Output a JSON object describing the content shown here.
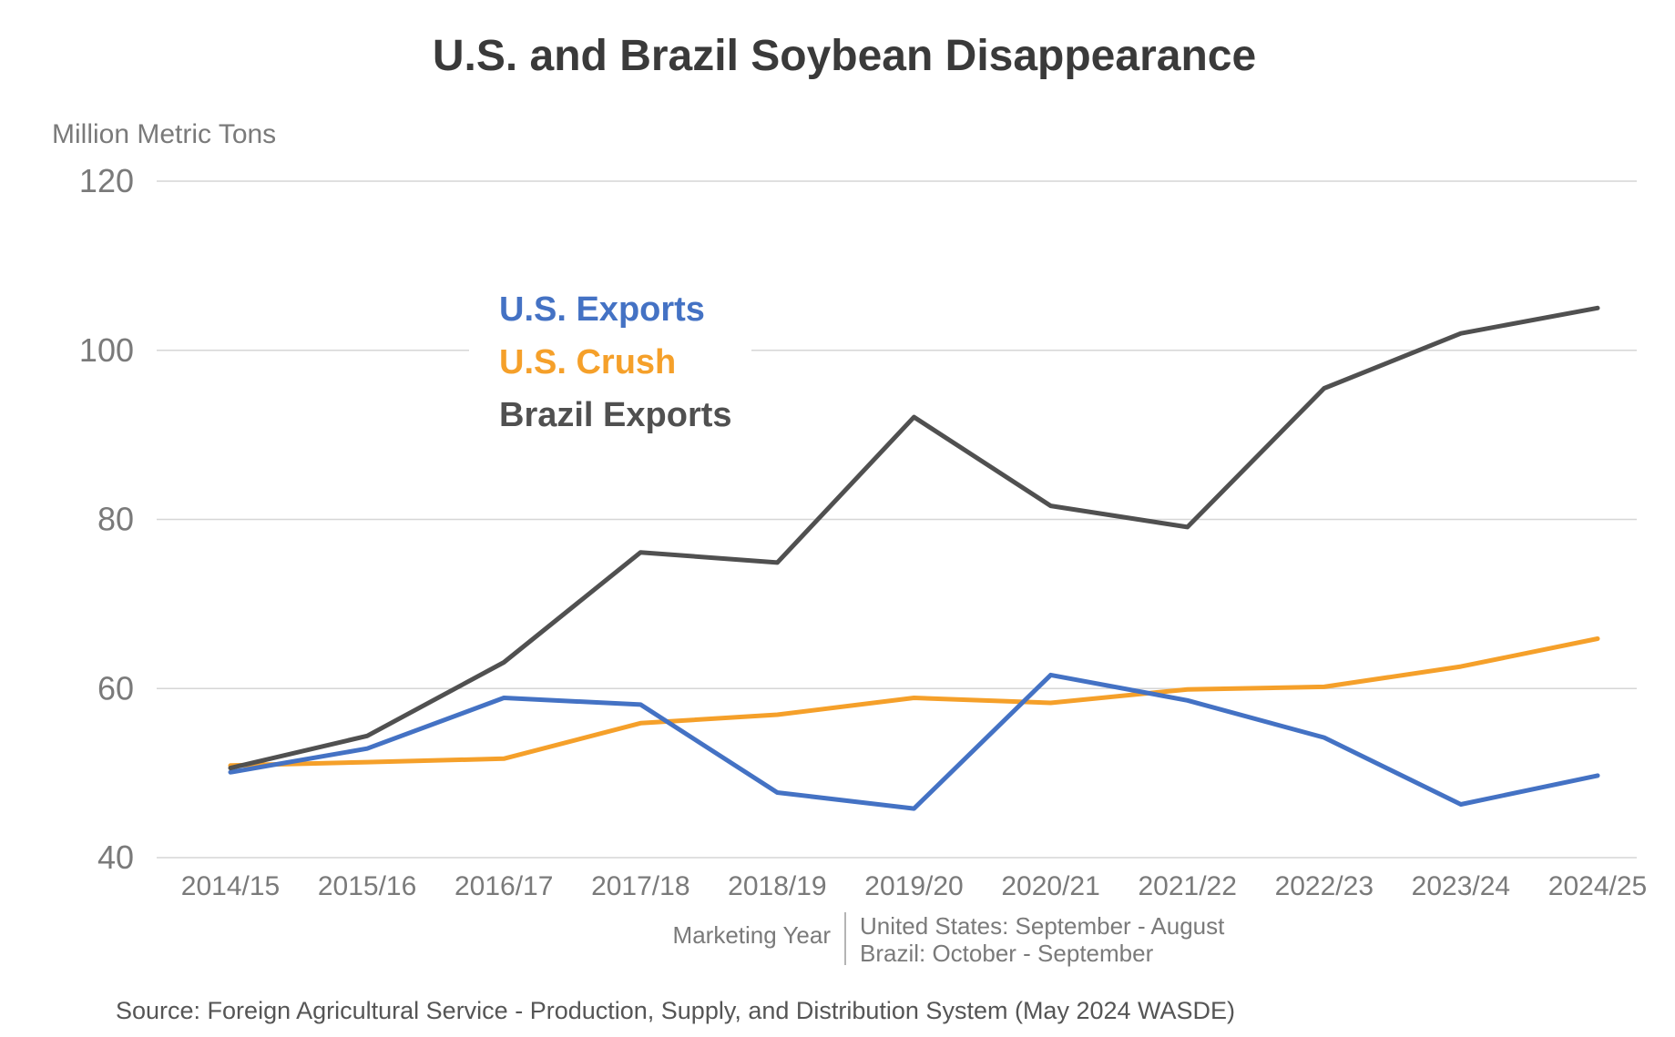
{
  "chart_data": {
    "type": "line",
    "title": "U.S. and Brazil Soybean Disappearance",
    "ylabel": "Million Metric Tons",
    "xlabel": "Marketing Year",
    "ylim": [
      40,
      120
    ],
    "yticks": [
      40,
      60,
      80,
      100,
      120
    ],
    "grid": true,
    "legend_position": "upper-left",
    "categories": [
      "2014/15",
      "2015/16",
      "2016/17",
      "2017/18",
      "2018/19",
      "2019/20",
      "2020/21",
      "2021/22",
      "2022/23",
      "2023/24",
      "2024/25"
    ],
    "series": [
      {
        "name": "U.S. Exports",
        "color": "#4472c4",
        "values": [
          50.1,
          52.9,
          58.9,
          58.1,
          47.7,
          45.8,
          61.6,
          58.6,
          54.2,
          46.3,
          49.7
        ]
      },
      {
        "name": "U.S. Crush",
        "color": "#f5a02a",
        "values": [
          50.9,
          51.3,
          51.7,
          55.9,
          56.9,
          58.9,
          58.3,
          59.9,
          60.2,
          62.6,
          65.9
        ]
      },
      {
        "name": "Brazil Exports",
        "color": "#505050",
        "values": [
          50.6,
          54.4,
          63.1,
          76.1,
          74.9,
          92.1,
          81.6,
          79.1,
          95.5,
          102.0,
          105.0
        ]
      }
    ],
    "marketing_year_note": {
      "label": "Marketing Year",
      "lines": [
        "United States: September - August",
        "Brazil: October - September"
      ]
    },
    "source": "Source: Foreign Agricultural Service - Production, Supply, and Distribution System  (May 2024 WASDE)"
  }
}
